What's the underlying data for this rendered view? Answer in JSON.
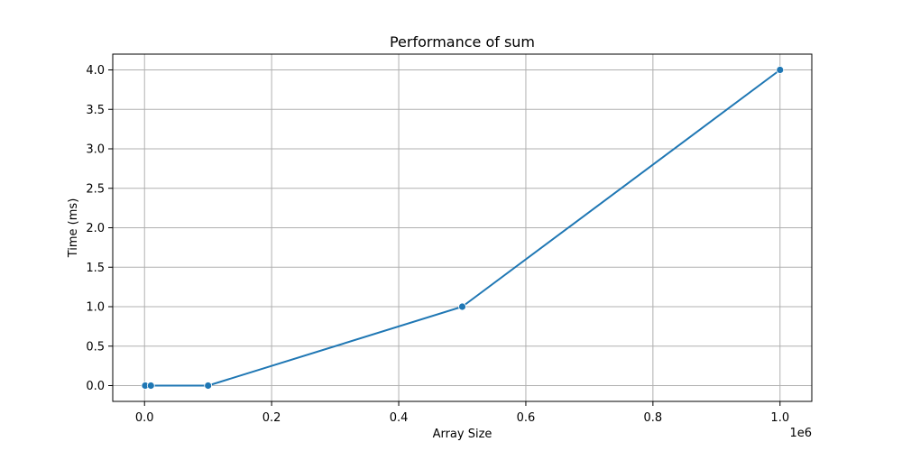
{
  "chart_data": {
    "type": "line",
    "title": "Performance of sum",
    "xlabel": "Array Size",
    "ylabel": "Time (ms)",
    "x_offset_text": "1e6",
    "xlim": [
      -0.05,
      1.05
    ],
    "ylim": [
      -0.2,
      4.2
    ],
    "x_ticks": [
      0.0,
      0.2,
      0.4,
      0.6,
      0.8,
      1.0
    ],
    "x_tick_labels": [
      "0.0",
      "0.2",
      "0.4",
      "0.6",
      "0.8",
      "1.0"
    ],
    "y_ticks": [
      0.0,
      0.5,
      1.0,
      1.5,
      2.0,
      2.5,
      3.0,
      3.5,
      4.0
    ],
    "y_tick_labels": [
      "0.0",
      "0.5",
      "1.0",
      "1.5",
      "2.0",
      "2.5",
      "3.0",
      "3.5",
      "4.0"
    ],
    "grid": true,
    "series": [
      {
        "color": "#1f77b4",
        "x": [
          0.001,
          0.01,
          0.1,
          0.5,
          1.0
        ],
        "y": [
          0.0,
          0.0,
          0.0,
          1.0,
          4.0
        ]
      }
    ]
  }
}
